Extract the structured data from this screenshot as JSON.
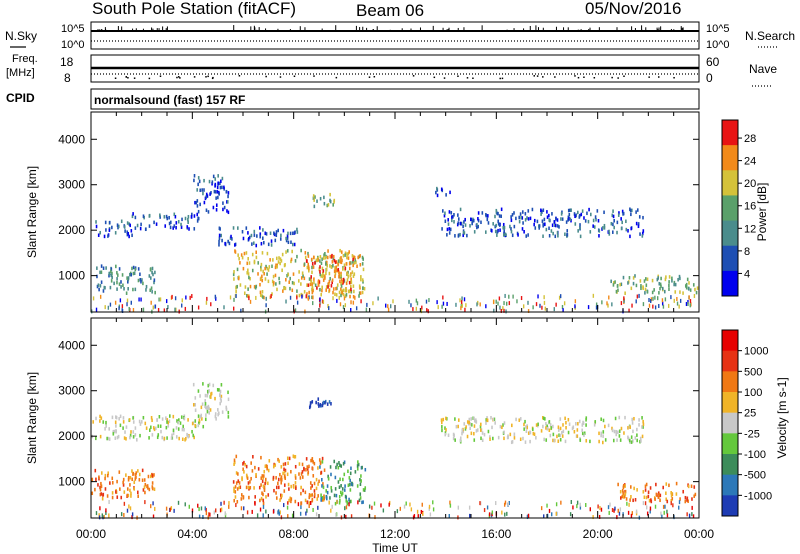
{
  "header": {
    "station_title": "South Pole Station (fitACF)",
    "beam": "Beam 06",
    "date": "05/Nov/2016"
  },
  "left_labels": {
    "nsky": "N.Sky",
    "freq": "Freq.",
    "mhz": "[MHz]",
    "cpid": "CPID"
  },
  "right_labels": {
    "nsearch": "N.Search",
    "nave": "Nave"
  },
  "noise_axis": {
    "top": "10^5",
    "bottom": "10^0",
    "right_top": "10^5",
    "right_bottom": "10^0"
  },
  "freq_axis": {
    "top": "18",
    "bottom": "8",
    "right_top": "60",
    "right_bottom": "0"
  },
  "cpid": {
    "text": "normalsound (fast) 157 RF"
  },
  "x_axis": {
    "label": "Time UT",
    "ticks": [
      "00:00",
      "04:00",
      "08:00",
      "12:00",
      "16:00",
      "20:00",
      "00:00"
    ]
  },
  "chart_data": [
    {
      "type": "heatmap",
      "name": "power_panel",
      "ylabel": "Slant Range [km]",
      "yticks": [
        "1000",
        "2000",
        "3000",
        "4000"
      ],
      "ylim": [
        200,
        4600
      ],
      "xlim_hours": [
        0,
        24
      ],
      "colorbar": {
        "title": "Power [dB]",
        "ticks": [
          "4",
          "8",
          "12",
          "16",
          "20",
          "24",
          "28"
        ],
        "colors": [
          "#0000ee",
          "#1e4fb3",
          "#4a8c8c",
          "#5aa06a",
          "#d4c23a",
          "#f28a1a",
          "#e81414"
        ]
      },
      "regions": [
        {
          "t0": 0.2,
          "t1": 2.6,
          "r0": 650,
          "r1": 1250,
          "level": 2
        },
        {
          "t0": 0.0,
          "t1": 1.6,
          "r0": 1900,
          "r1": 2250,
          "level": 1
        },
        {
          "t0": 1.6,
          "t1": 4.3,
          "r0": 2050,
          "r1": 2400,
          "level": 1
        },
        {
          "t0": 4.0,
          "t1": 5.4,
          "r0": 2400,
          "r1": 3250,
          "level": 1
        },
        {
          "t0": 5.0,
          "t1": 8.2,
          "r0": 1700,
          "r1": 2100,
          "level": 1
        },
        {
          "t0": 5.6,
          "t1": 10.8,
          "r0": 550,
          "r1": 1600,
          "level": 4
        },
        {
          "t0": 8.4,
          "t1": 10.4,
          "r0": 650,
          "r1": 1500,
          "level": 5
        },
        {
          "t0": 8.6,
          "t1": 9.6,
          "r0": 2550,
          "r1": 2850,
          "level": 3
        },
        {
          "t0": 13.8,
          "t1": 21.8,
          "r0": 1900,
          "r1": 2500,
          "level": 1
        },
        {
          "t0": 13.5,
          "t1": 14.2,
          "r0": 2800,
          "r1": 3000,
          "level": 1
        },
        {
          "t0": 20.5,
          "t1": 24.0,
          "r0": 650,
          "r1": 1050,
          "level": 3
        }
      ]
    },
    {
      "type": "heatmap",
      "name": "velocity_panel",
      "ylabel": "Slant Range [km]",
      "yticks": [
        "1000",
        "2000",
        "3000",
        "4000"
      ],
      "ylim": [
        200,
        4600
      ],
      "xlim_hours": [
        0,
        24
      ],
      "colorbar": {
        "title": "Velocity [m s-1]",
        "ticks": [
          "1000",
          "500",
          "100",
          "25",
          "-25",
          "-100",
          "-500",
          "-1000"
        ],
        "colors": [
          "#1e3cb4",
          "#2c78b8",
          "#3c8c5a",
          "#64c83c",
          "#c8c8c8",
          "#f0b428",
          "#f07814",
          "#e63214",
          "#e60000"
        ]
      },
      "regions": [
        {
          "t0": 0.0,
          "t1": 2.5,
          "r0": 650,
          "r1": 1300,
          "level": 6
        },
        {
          "t0": 0.0,
          "t1": 4.4,
          "r0": 1950,
          "r1": 2500,
          "level": 4
        },
        {
          "t0": 4.0,
          "t1": 5.4,
          "r0": 2400,
          "r1": 3200,
          "level": 4
        },
        {
          "t0": 5.6,
          "t1": 9.2,
          "r0": 550,
          "r1": 1600,
          "level": 6
        },
        {
          "t0": 9.0,
          "t1": 10.8,
          "r0": 550,
          "r1": 1500,
          "level": 2
        },
        {
          "t0": 8.6,
          "t1": 9.6,
          "r0": 2550,
          "r1": 2900,
          "level": 0
        },
        {
          "t0": 13.8,
          "t1": 21.8,
          "r0": 1900,
          "r1": 2450,
          "level": 4
        },
        {
          "t0": 20.6,
          "t1": 24.0,
          "r0": 600,
          "r1": 1000,
          "level": 6
        }
      ]
    }
  ]
}
